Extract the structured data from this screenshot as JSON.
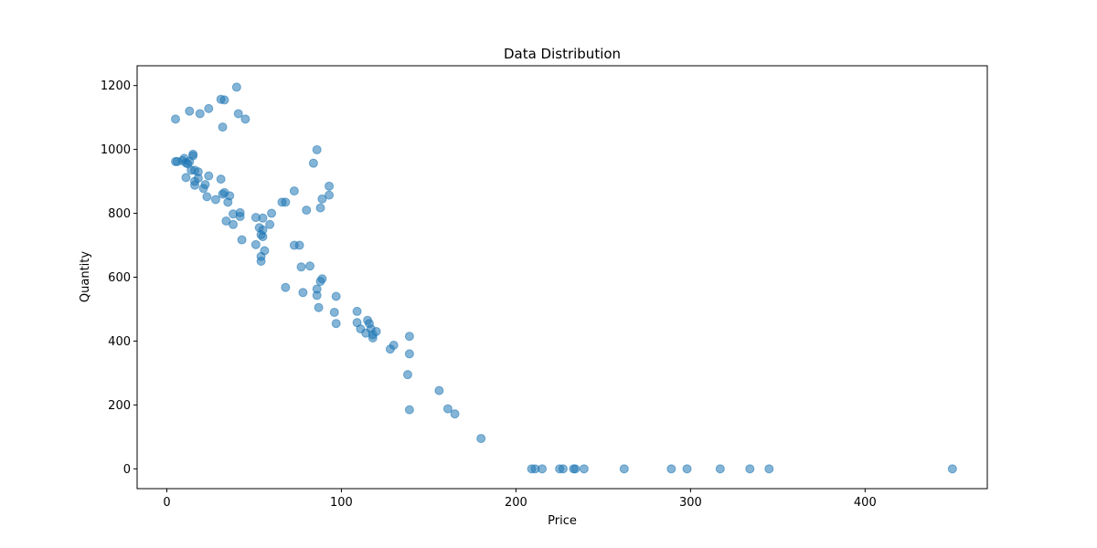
{
  "chart_data": {
    "type": "scatter",
    "title": "Data Distribution",
    "xlabel": "Price",
    "ylabel": "Quantity",
    "xlim": [
      -17,
      470
    ],
    "ylim": [
      -62,
      1262
    ],
    "xticks": [
      0,
      100,
      200,
      300,
      400
    ],
    "yticks": [
      0,
      200,
      400,
      600,
      800,
      1000,
      1200
    ],
    "grid": false,
    "legend": "none",
    "marker_color": "#1f77b4",
    "marker_opacity": 0.55,
    "series": [
      {
        "points": [
          [
            5,
            1095
          ],
          [
            13,
            1120
          ],
          [
            19,
            1112
          ],
          [
            24,
            1128
          ],
          [
            31,
            1157
          ],
          [
            33,
            1155
          ],
          [
            40,
            1195
          ],
          [
            41,
            1112
          ],
          [
            45,
            1095
          ],
          [
            32,
            1070
          ],
          [
            5,
            962
          ],
          [
            6,
            962
          ],
          [
            10,
            972
          ],
          [
            9,
            965
          ],
          [
            11,
            958
          ],
          [
            12,
            955
          ],
          [
            13,
            962
          ],
          [
            15,
            985
          ],
          [
            15,
            980
          ],
          [
            14,
            935
          ],
          [
            16,
            935
          ],
          [
            18,
            930
          ],
          [
            18,
            910
          ],
          [
            11,
            912
          ],
          [
            24,
            917
          ],
          [
            16,
            900
          ],
          [
            16,
            888
          ],
          [
            21,
            878
          ],
          [
            22,
            890
          ],
          [
            31,
            907
          ],
          [
            23,
            852
          ],
          [
            28,
            843
          ],
          [
            32,
            860
          ],
          [
            33,
            865
          ],
          [
            36,
            855
          ],
          [
            35,
            835
          ],
          [
            34,
            776
          ],
          [
            38,
            765
          ],
          [
            38,
            798
          ],
          [
            42,
            802
          ],
          [
            42,
            790
          ],
          [
            43,
            717
          ],
          [
            51,
            787
          ],
          [
            55,
            785
          ],
          [
            53,
            755
          ],
          [
            55,
            748
          ],
          [
            59,
            765
          ],
          [
            60,
            800
          ],
          [
            54,
            733
          ],
          [
            55,
            727
          ],
          [
            51,
            702
          ],
          [
            56,
            683
          ],
          [
            54,
            665
          ],
          [
            54,
            650
          ],
          [
            66,
            835
          ],
          [
            68,
            835
          ],
          [
            73,
            870
          ],
          [
            80,
            810
          ],
          [
            84,
            957
          ],
          [
            86,
            999
          ],
          [
            88,
            817
          ],
          [
            89,
            845
          ],
          [
            93,
            857
          ],
          [
            93,
            885
          ],
          [
            73,
            700
          ],
          [
            76,
            700
          ],
          [
            77,
            632
          ],
          [
            82,
            635
          ],
          [
            68,
            568
          ],
          [
            78,
            552
          ],
          [
            86,
            563
          ],
          [
            86,
            543
          ],
          [
            87,
            505
          ],
          [
            88,
            587
          ],
          [
            89,
            595
          ],
          [
            96,
            490
          ],
          [
            97,
            540
          ],
          [
            97,
            455
          ],
          [
            109,
            493
          ],
          [
            109,
            458
          ],
          [
            111,
            438
          ],
          [
            114,
            425
          ],
          [
            115,
            465
          ],
          [
            116,
            455
          ],
          [
            117,
            438
          ],
          [
            118,
            420
          ],
          [
            118,
            410
          ],
          [
            120,
            430
          ],
          [
            128,
            375
          ],
          [
            130,
            387
          ],
          [
            139,
            415
          ],
          [
            139,
            360
          ],
          [
            138,
            295
          ],
          [
            139,
            185
          ],
          [
            156,
            245
          ],
          [
            161,
            188
          ],
          [
            165,
            172
          ],
          [
            180,
            95
          ],
          [
            209,
            0
          ],
          [
            211,
            0
          ],
          [
            215,
            0
          ],
          [
            225,
            0
          ],
          [
            227,
            0
          ],
          [
            233,
            0
          ],
          [
            234,
            0
          ],
          [
            239,
            0
          ],
          [
            262,
            0
          ],
          [
            289,
            0
          ],
          [
            298,
            0
          ],
          [
            317,
            0
          ],
          [
            334,
            0
          ],
          [
            345,
            0
          ],
          [
            450,
            0
          ]
        ]
      }
    ]
  }
}
